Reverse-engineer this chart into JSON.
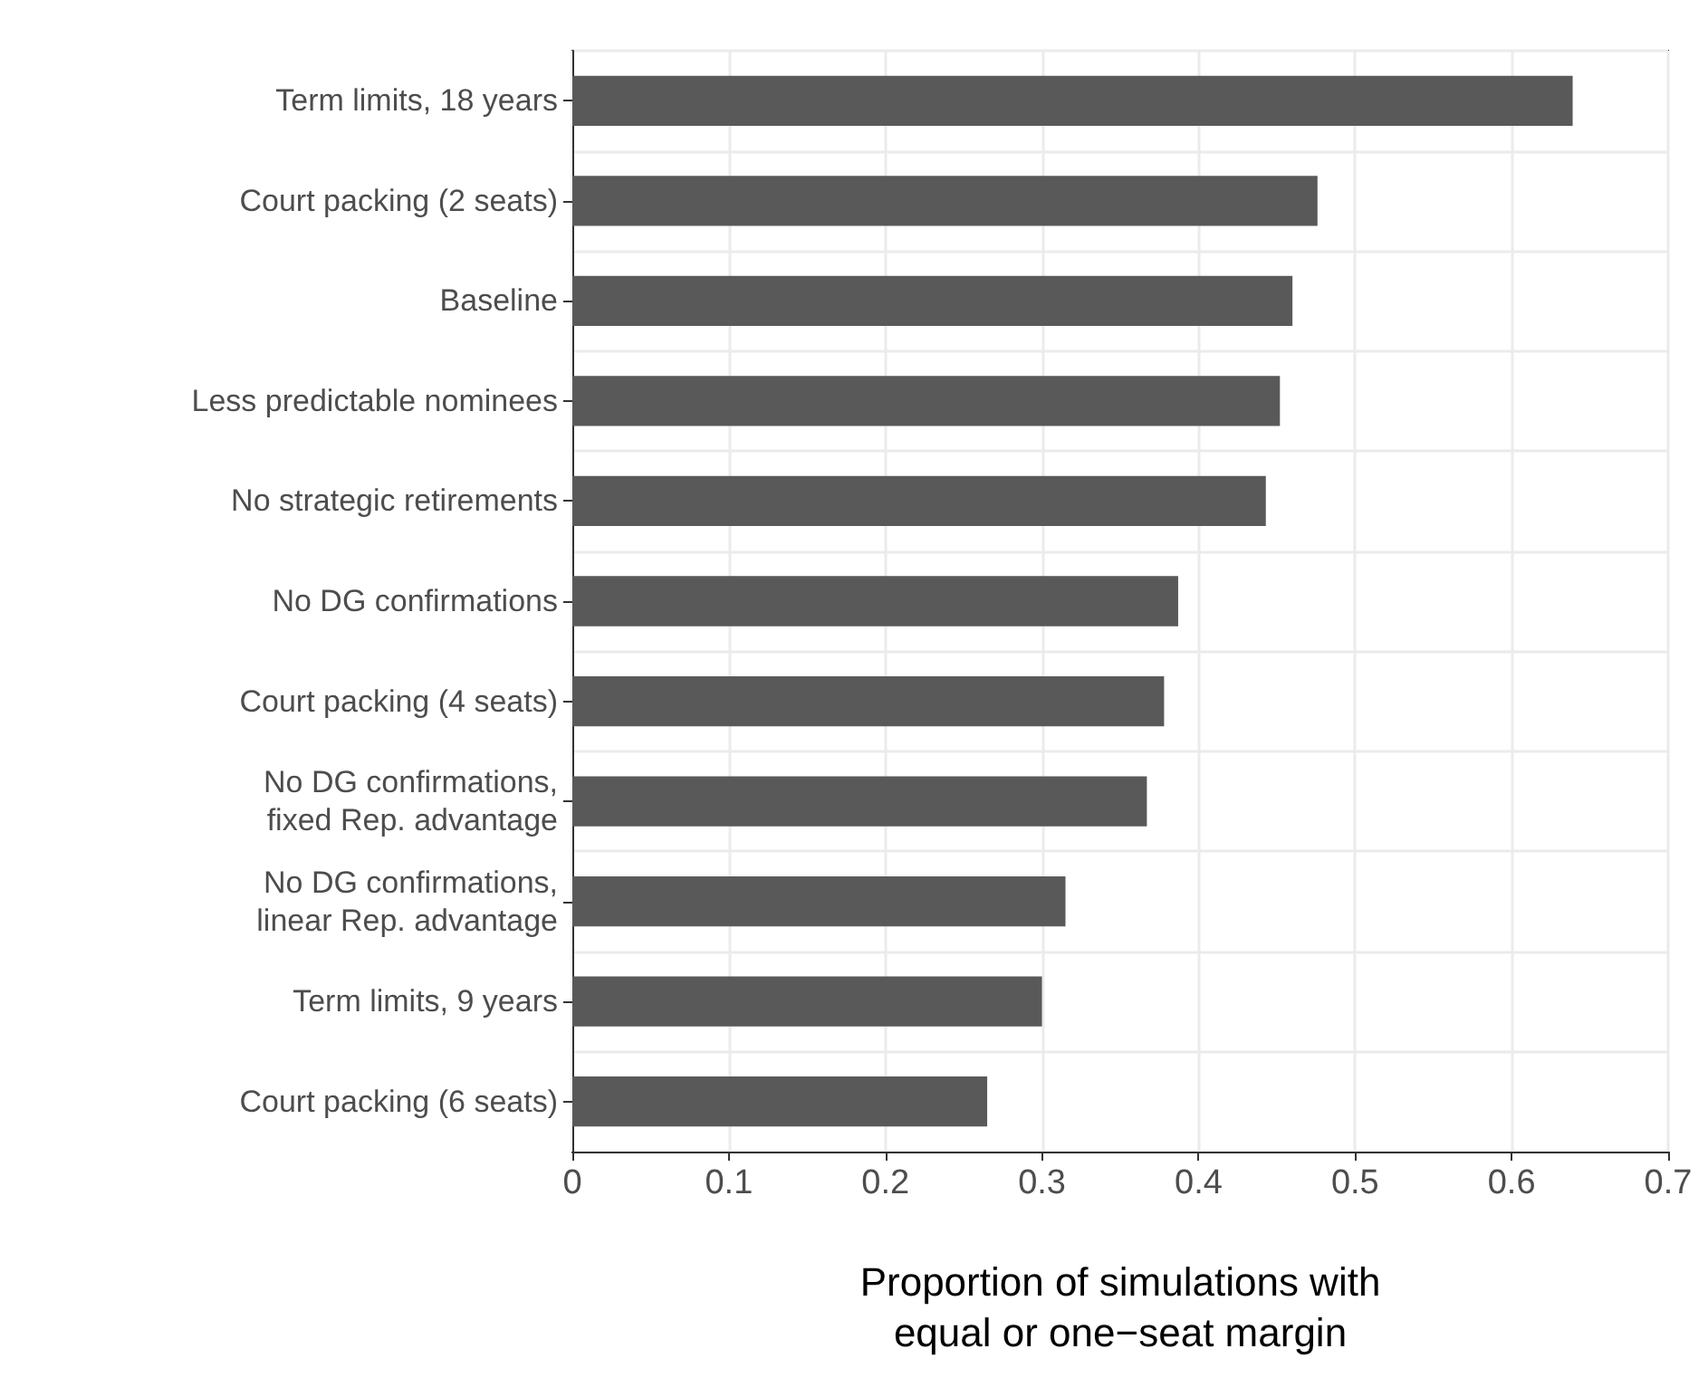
{
  "chart_data": {
    "type": "bar",
    "orientation": "horizontal",
    "xlabel": "Proportion of simulations with\nequal or one−seat margin",
    "categories": [
      "Term limits, 18 years",
      "Court packing (2 seats)",
      "Baseline",
      "Less predictable nominees",
      "No strategic retirements",
      "No DG confirmations",
      "Court packing (4 seats)",
      "No DG confirmations,\nfixed Rep. advantage",
      "No DG confirmations,\nlinear Rep. advantage",
      "Term limits, 9 years",
      "Court packing (6 seats)"
    ],
    "values": [
      0.639,
      0.476,
      0.46,
      0.452,
      0.443,
      0.387,
      0.378,
      0.367,
      0.315,
      0.3,
      0.265
    ],
    "color": "#595959",
    "xlim": [
      0,
      0.7
    ],
    "xticks": [
      0,
      0.1,
      0.2,
      0.3,
      0.4,
      0.5,
      0.6,
      0.7
    ],
    "grid": true
  }
}
